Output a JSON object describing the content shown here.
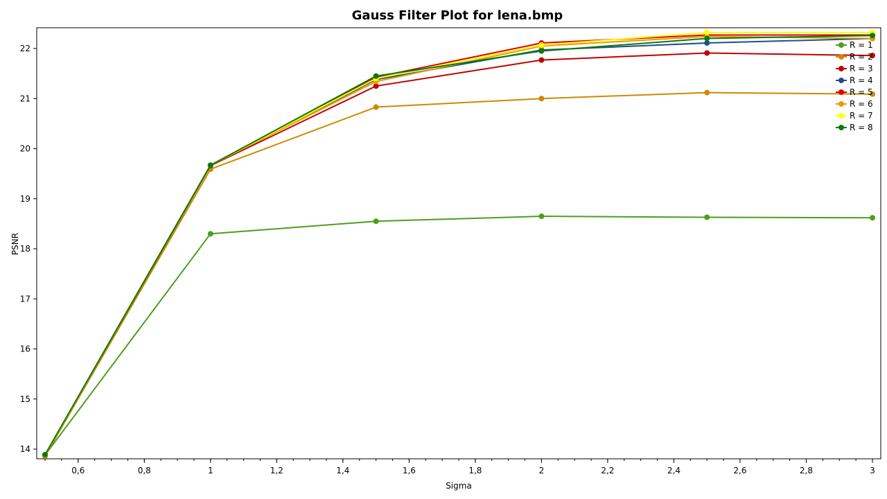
{
  "chart_data": {
    "type": "line",
    "title": "Gauss Filter Plot for lena.bmp",
    "xlabel": "Sigma",
    "ylabel": "PSNR",
    "xlim": [
      0.5,
      3.0
    ],
    "ylim": [
      13.8,
      22.4
    ],
    "x_ticks": [
      0.6,
      0.8,
      1.0,
      1.2,
      1.4,
      1.6,
      1.8,
      2.0,
      2.2,
      2.4,
      2.6,
      2.8,
      3.0
    ],
    "x_tick_labels": [
      "0,6",
      "0,8",
      "1",
      "1,2",
      "1,4",
      "1,6",
      "1,8",
      "2",
      "2,2",
      "2,4",
      "2,6",
      "2,8",
      "3"
    ],
    "y_ticks": [
      14,
      15,
      16,
      17,
      18,
      19,
      20,
      21,
      22
    ],
    "y_tick_labels": [
      "14",
      "15",
      "16",
      "17",
      "18",
      "19",
      "20",
      "21",
      "22"
    ],
    "x": [
      0.5,
      1.0,
      1.5,
      2.0,
      2.5,
      3.0
    ],
    "grid": false,
    "legend_position": "top-right",
    "series": [
      {
        "name": "R = 1",
        "color": "#4d9e1a",
        "values": [
          13.88,
          18.3,
          18.55,
          18.65,
          18.63,
          18.62
        ]
      },
      {
        "name": "R = 2",
        "color": "#cc8a00",
        "values": [
          13.86,
          19.59,
          20.83,
          21.0,
          21.12,
          21.09
        ]
      },
      {
        "name": "R = 3",
        "color": "#c00000",
        "values": [
          13.87,
          19.66,
          21.25,
          21.77,
          21.91,
          21.86
        ]
      },
      {
        "name": "R = 4",
        "color": "#1f4e8c",
        "values": [
          13.88,
          19.67,
          21.38,
          21.97,
          22.11,
          22.2
        ]
      },
      {
        "name": "R = 5",
        "color": "#e00000",
        "values": [
          13.88,
          19.67,
          21.43,
          22.11,
          22.27,
          22.27
        ]
      },
      {
        "name": "R = 6",
        "color": "#e69a00",
        "values": [
          13.88,
          19.67,
          21.34,
          22.05,
          22.24,
          22.2
        ]
      },
      {
        "name": "R = 7",
        "color": "#ffff00",
        "values": [
          13.88,
          19.67,
          21.4,
          22.07,
          22.32,
          22.32
        ]
      },
      {
        "name": "R = 8",
        "color": "#0a7a0a",
        "values": [
          13.89,
          19.67,
          21.45,
          21.95,
          22.2,
          22.26
        ]
      }
    ]
  }
}
